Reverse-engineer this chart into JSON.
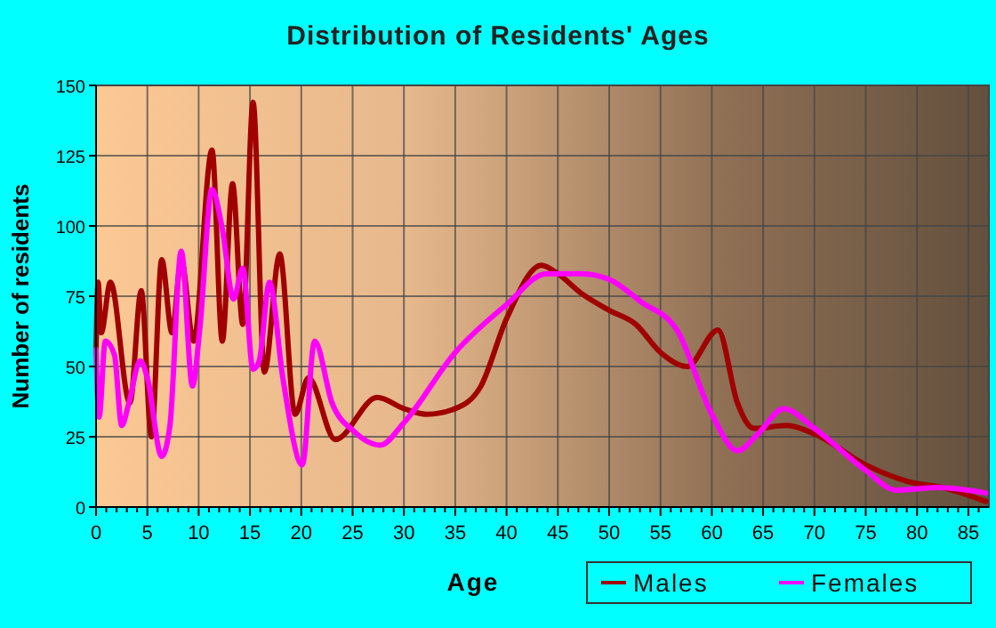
{
  "chart_data": {
    "type": "line",
    "title": "Distribution of Residents' Ages",
    "xlabel": "Age",
    "ylabel": "Number of residents",
    "xlim": [
      0,
      87
    ],
    "ylim": [
      0,
      150
    ],
    "xticks": [
      0,
      {
        "value": 1,
        "label": null
      },
      {
        "value": 2,
        "label": null
      },
      {
        "value": 3,
        "label": null
      },
      {
        "value": 4,
        "label": null
      },
      5,
      {
        "value": 6,
        "label": null
      },
      {
        "value": 7,
        "label": null
      },
      {
        "value": 8,
        "label": null
      },
      {
        "value": 9,
        "label": null
      },
      10,
      {
        "value": 11,
        "label": null
      },
      {
        "value": 12,
        "label": null
      },
      {
        "value": 13,
        "label": null
      },
      {
        "value": 14,
        "label": null
      },
      15,
      {
        "value": 16,
        "label": null
      },
      {
        "value": 17,
        "label": null
      },
      {
        "value": 18,
        "label": null
      },
      {
        "value": 19,
        "label": null
      },
      20,
      {
        "value": 21,
        "label": null
      },
      {
        "value": 22,
        "label": null
      },
      {
        "value": 23,
        "label": null
      },
      {
        "value": 24,
        "label": null
      },
      25,
      {
        "value": 26,
        "label": null
      },
      {
        "value": 27,
        "label": null
      },
      {
        "value": 28,
        "label": null
      },
      {
        "value": 29,
        "label": null
      },
      30,
      {
        "value": 31,
        "label": null
      },
      {
        "value": 32,
        "label": null
      },
      {
        "value": 33,
        "label": null
      },
      {
        "value": 34,
        "label": null
      },
      35,
      {
        "value": 36,
        "label": null
      },
      {
        "value": 37,
        "label": null
      },
      {
        "value": 38,
        "label": null
      },
      {
        "value": 39,
        "label": null
      },
      40,
      {
        "value": 41,
        "label": null
      },
      {
        "value": 42,
        "label": null
      },
      {
        "value": 43,
        "label": null
      },
      {
        "value": 44,
        "label": null
      },
      45,
      {
        "value": 46,
        "label": null
      },
      {
        "value": 47,
        "label": null
      },
      {
        "value": 48,
        "label": null
      },
      {
        "value": 49,
        "label": null
      },
      50,
      {
        "value": 51,
        "label": null
      },
      {
        "value": 52,
        "label": null
      },
      {
        "value": 53,
        "label": null
      },
      {
        "value": 54,
        "label": null
      },
      55,
      {
        "value": 56,
        "label": null
      },
      {
        "value": 57,
        "label": null
      },
      {
        "value": 58,
        "label": null
      },
      {
        "value": 59,
        "label": null
      },
      60,
      {
        "value": 61,
        "label": null
      },
      {
        "value": 62,
        "label": null
      },
      {
        "value": 63,
        "label": null
      },
      {
        "value": 64,
        "label": null
      },
      65,
      {
        "value": 66,
        "label": null
      },
      {
        "value": 67,
        "label": null
      },
      {
        "value": 68,
        "label": null
      },
      {
        "value": 69,
        "label": null
      },
      70,
      {
        "value": 71,
        "label": null
      },
      {
        "value": 72,
        "label": null
      },
      {
        "value": 73,
        "label": null
      },
      {
        "value": 74,
        "label": null
      },
      75,
      {
        "value": 76,
        "label": null
      },
      {
        "value": 77,
        "label": null
      },
      {
        "value": 78,
        "label": null
      },
      {
        "value": 79,
        "label": null
      },
      80,
      {
        "value": 81,
        "label": null
      },
      {
        "value": 82,
        "label": null
      },
      {
        "value": 83,
        "label": null
      },
      {
        "value": 84,
        "label": null
      },
      85,
      {
        "value": 86,
        "label": null
      }
    ],
    "yticks": [
      0,
      25,
      50,
      75,
      100,
      125,
      150
    ],
    "grid": true,
    "legend": "bottom right",
    "series": [
      {
        "name": "Males",
        "color": "#a00000",
        "x": [
          0,
          0.2,
          0.5,
          1.4,
          3.3,
          4.4,
          5.4,
          6.4,
          7.4,
          8.3,
          9.5,
          11.3,
          12.3,
          13.3,
          14.3,
          15.3,
          16.4,
          17.9,
          19.4,
          20.7,
          23.3,
          27.4,
          30,
          32.2,
          35,
          37.5,
          40,
          43.4,
          45,
          47.3,
          50,
          52.6,
          55,
          57.6,
          60.6,
          62.5,
          64.1,
          67.3,
          70,
          75,
          79.2,
          82.4,
          86.7
        ],
        "values": [
          55,
          80,
          62,
          80,
          37,
          77,
          25,
          88,
          62,
          88,
          59,
          127,
          59,
          115,
          65,
          144,
          48,
          90,
          33,
          46,
          24,
          39,
          35,
          33,
          35,
          43,
          67,
          86,
          83,
          76,
          70,
          65,
          55,
          50,
          63,
          37,
          28,
          29,
          26,
          15,
          9,
          7,
          2
        ]
      },
      {
        "name": "Females",
        "color": "#ff00ff",
        "x": [
          0,
          0.3,
          0.9,
          1.8,
          2.5,
          3.2,
          4.3,
          5,
          6.4,
          7.2,
          8.3,
          9.4,
          10.1,
          11.3,
          12.3,
          13.4,
          14.3,
          15.3,
          15.9,
          16.9,
          18.2,
          20.1,
          21.3,
          23,
          25.1,
          27.7,
          30,
          35,
          40,
          43.9,
          47.3,
          50,
          53.1,
          56.6,
          60,
          62.5,
          64.5,
          67,
          70,
          75,
          78,
          82,
          86.7
        ],
        "values": [
          56,
          32,
          59,
          54,
          29,
          37,
          52,
          46,
          18,
          29,
          91,
          43,
          63,
          113,
          99,
          74,
          85,
          49,
          52,
          80,
          46,
          15,
          59,
          37,
          27,
          22,
          30,
          55,
          72,
          83,
          83,
          81,
          73,
          63,
          33,
          20,
          26,
          35,
          28,
          13,
          6,
          7,
          5
        ]
      }
    ]
  }
}
